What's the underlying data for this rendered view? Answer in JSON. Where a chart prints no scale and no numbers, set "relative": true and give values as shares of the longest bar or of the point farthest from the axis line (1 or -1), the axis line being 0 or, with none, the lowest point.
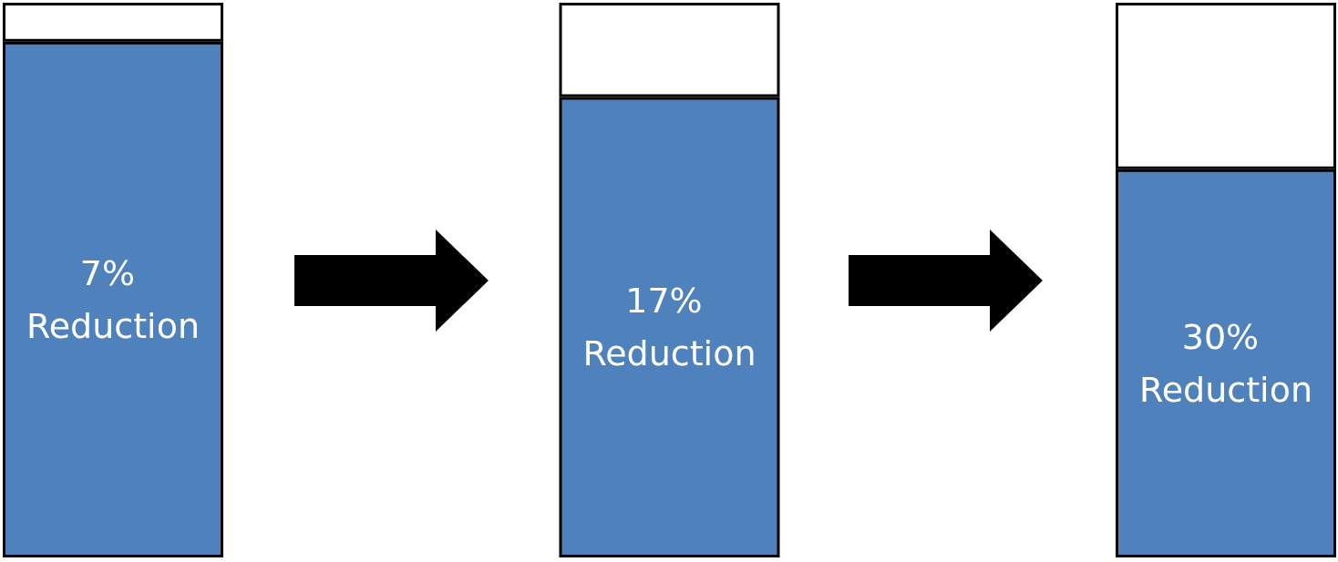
{
  "chart_data": {
    "type": "bar",
    "relative": true,
    "stacked": true,
    "categories": [
      null,
      null,
      null
    ],
    "series": [
      {
        "color": "#4f81bd",
        "values": [
          0.93,
          0.83,
          0.7
        ]
      },
      {
        "color": "#ffffff",
        "values": [
          0.07,
          0.17,
          0.3
        ]
      }
    ],
    "annotations": [
      "7% Reduction",
      "17% Reduction",
      "30% Reduction"
    ]
  }
}
